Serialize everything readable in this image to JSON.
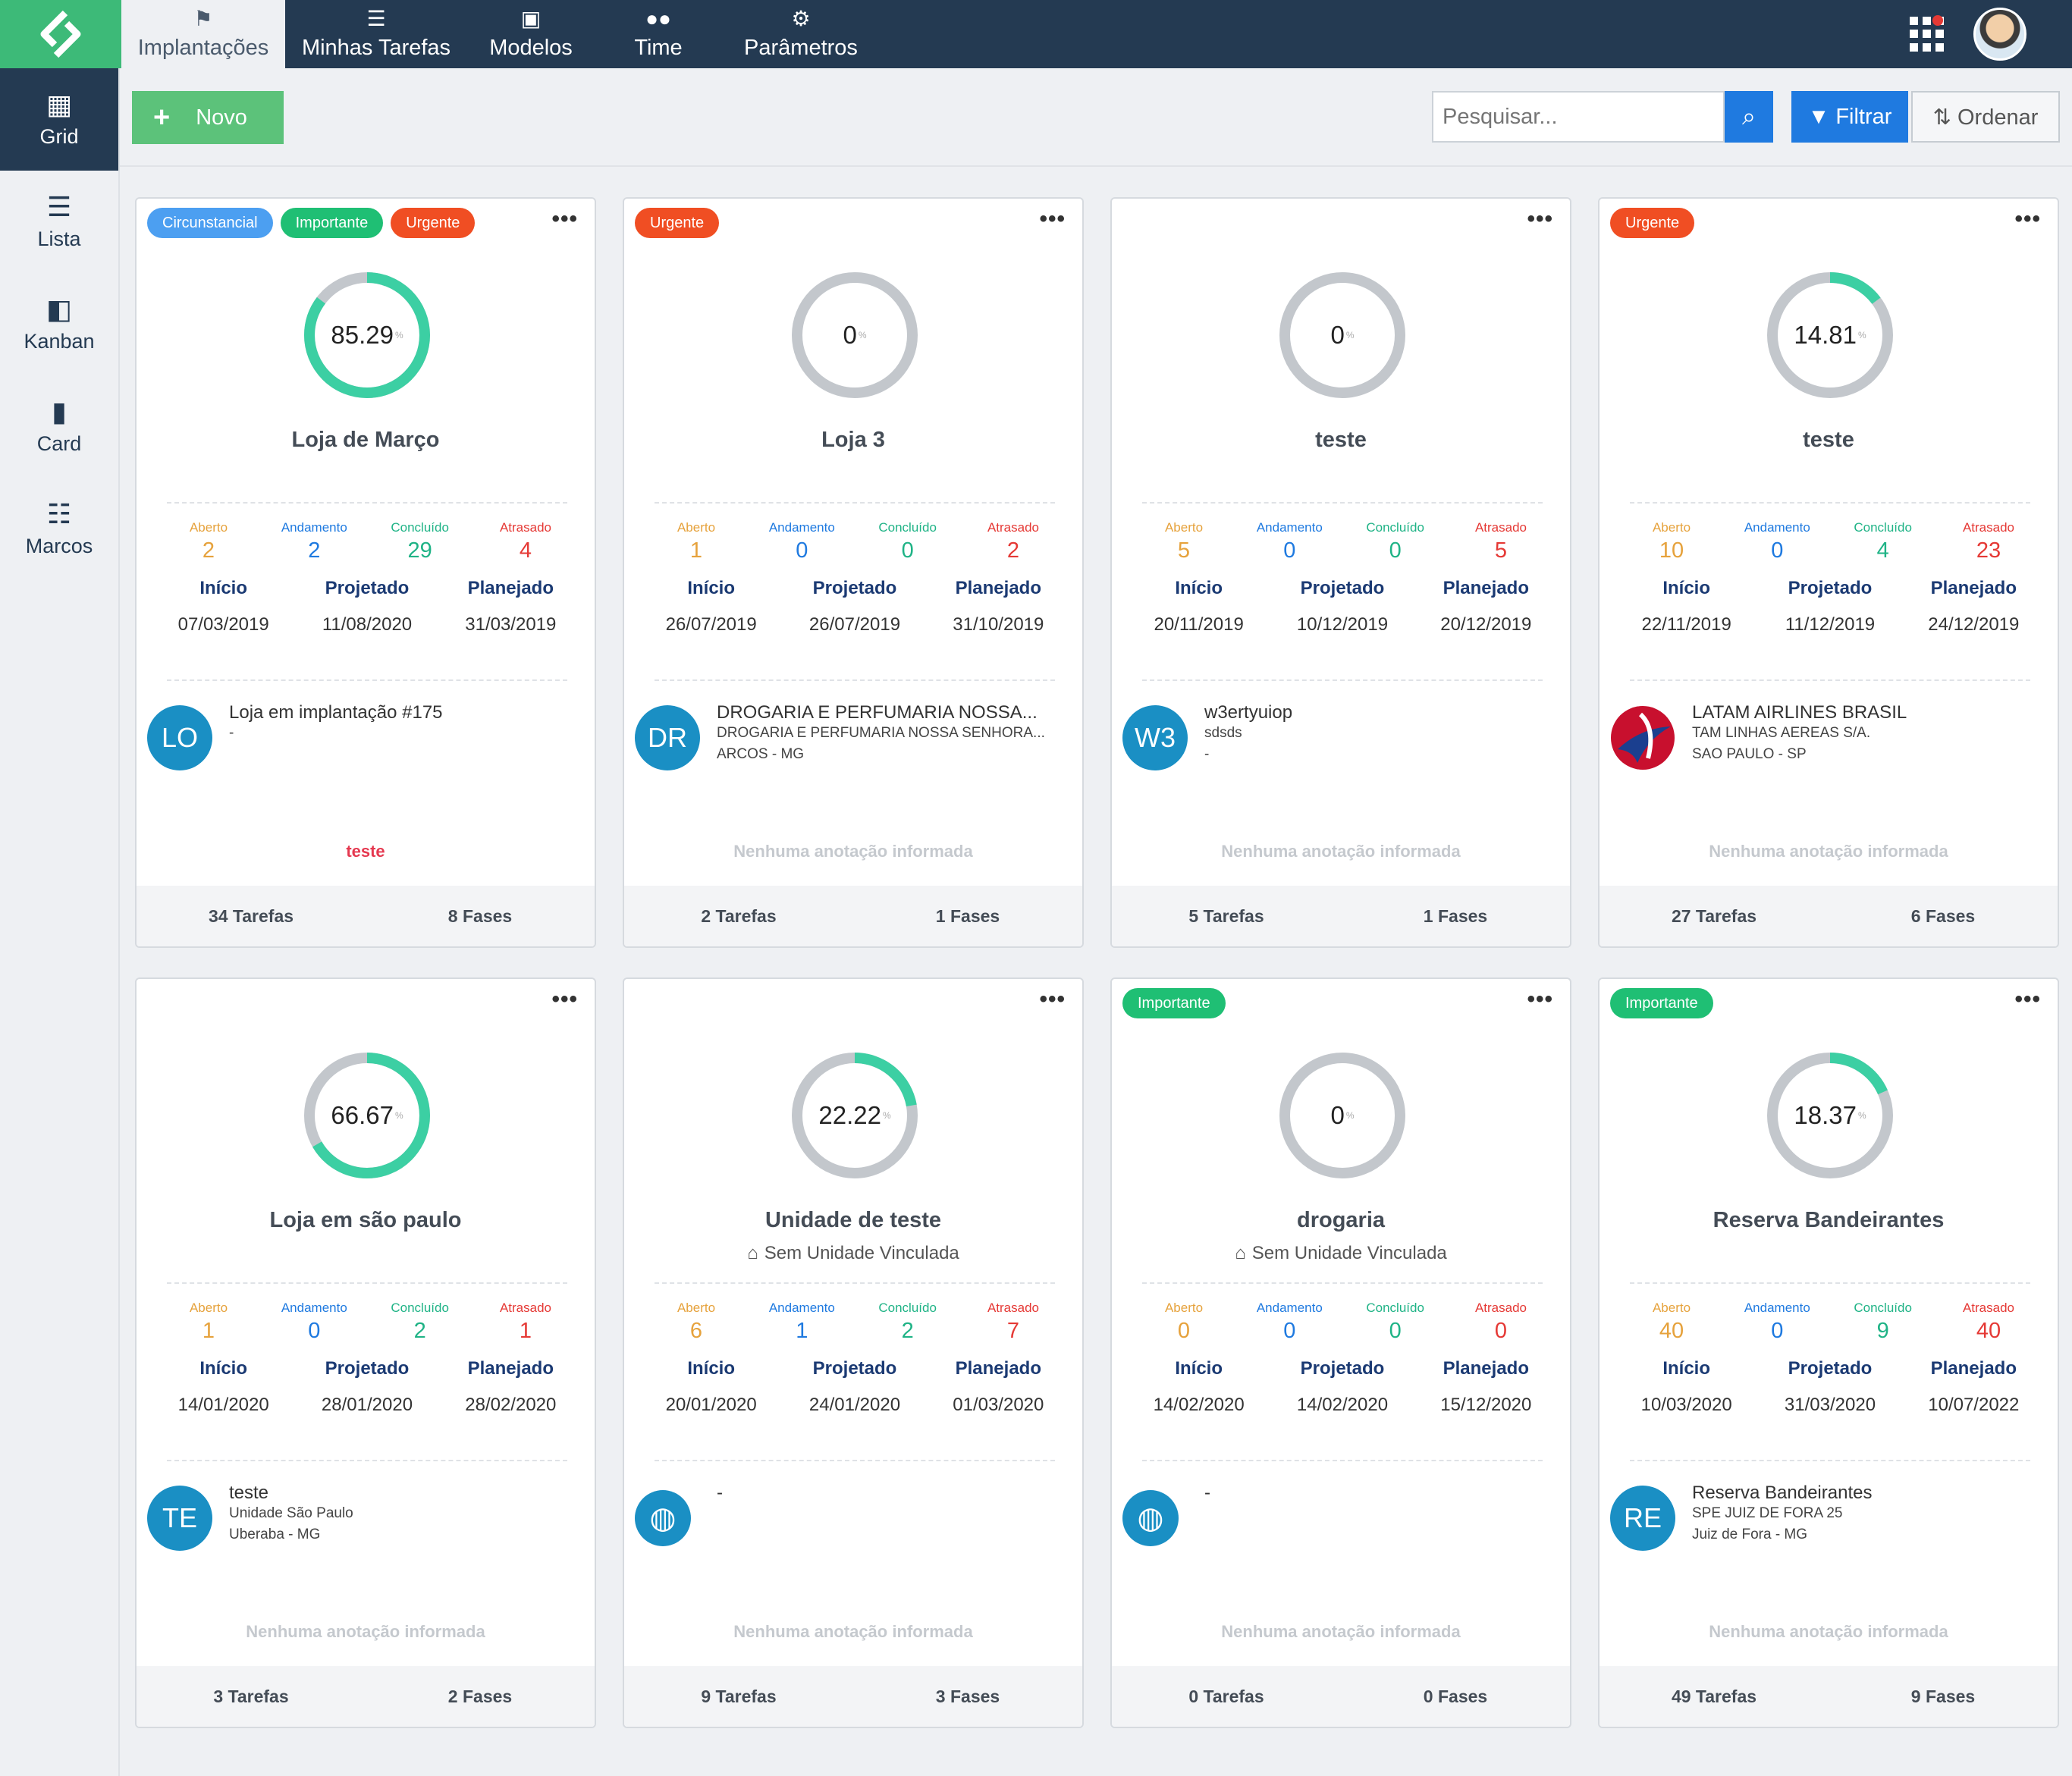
{
  "nav": {
    "items": [
      {
        "label": "Implantações",
        "icon": "flag-icon"
      },
      {
        "label": "Minhas Tarefas",
        "icon": "tasks-icon"
      },
      {
        "label": "Modelos",
        "icon": "template-icon"
      },
      {
        "label": "Time",
        "icon": "users-icon"
      },
      {
        "label": "Parâmetros",
        "icon": "gears-icon"
      }
    ]
  },
  "sidebar": {
    "items": [
      {
        "label": "Grid",
        "icon": "grid-icon"
      },
      {
        "label": "Lista",
        "icon": "list-icon"
      },
      {
        "label": "Kanban",
        "icon": "kanban-icon"
      },
      {
        "label": "Card",
        "icon": "bookmark-icon"
      },
      {
        "label": "Marcos",
        "icon": "list-bullets-icon"
      }
    ]
  },
  "toolbar": {
    "new_label": "Novo",
    "search_placeholder": "Pesquisar...",
    "filter_label": "Filtrar",
    "order_label": "Ordenar"
  },
  "labels": {
    "aberto": "Aberto",
    "andamento": "Andamento",
    "concluido": "Concluído",
    "atrasado": "Atrasado",
    "inicio": "Início",
    "projetado": "Projetado",
    "planejado": "Planejado",
    "percent_sign": "%"
  },
  "colors": {
    "progress": "#3ccfa3",
    "track": "#c3c7cc",
    "brand_green": "#3dba78",
    "nav_dark": "#243a52",
    "primary_blue": "#1f7ae0"
  },
  "cards": [
    {
      "tags": [
        {
          "label": "Circunstancial",
          "type": "circ"
        },
        {
          "label": "Importante",
          "type": "imp"
        },
        {
          "label": "Urgente",
          "type": "urg"
        }
      ],
      "progress": "85.29",
      "title": "Loja de Março",
      "subtitle": "",
      "stats": {
        "aberto": "2",
        "andamento": "2",
        "concluido": "29",
        "atrasado": "4"
      },
      "dates": {
        "inicio": "07/03/2019",
        "projetado": "11/08/2020",
        "planejado": "31/03/2019"
      },
      "client": {
        "avatar": "LO",
        "avatar_type": "initials",
        "name": "Loja em implantação #175",
        "lines": [
          "-"
        ]
      },
      "note": "teste",
      "note_red": true,
      "tarefas": "34 Tarefas",
      "fases": "8 Fases"
    },
    {
      "tags": [
        {
          "label": "Urgente",
          "type": "urg"
        }
      ],
      "progress": "0",
      "title": "Loja 3",
      "subtitle": "",
      "stats": {
        "aberto": "1",
        "andamento": "0",
        "concluido": "0",
        "atrasado": "2"
      },
      "dates": {
        "inicio": "26/07/2019",
        "projetado": "26/07/2019",
        "planejado": "31/10/2019"
      },
      "client": {
        "avatar": "DR",
        "avatar_type": "initials",
        "name": "DROGARIA E PERFUMARIA NOSSA...",
        "lines": [
          "DROGARIA E PERFUMARIA NOSSA SENHORA...",
          "ARCOS - MG"
        ]
      },
      "note": "Nenhuma anotação informada",
      "note_red": false,
      "tarefas": "2 Tarefas",
      "fases": "1 Fases"
    },
    {
      "tags": [],
      "progress": "0",
      "title": "teste",
      "subtitle": "",
      "stats": {
        "aberto": "5",
        "andamento": "0",
        "concluido": "0",
        "atrasado": "5"
      },
      "dates": {
        "inicio": "20/11/2019",
        "projetado": "10/12/2019",
        "planejado": "20/12/2019"
      },
      "client": {
        "avatar": "W3",
        "avatar_type": "initials",
        "name": "w3ertyuiop",
        "lines": [
          "sdsds",
          "-"
        ]
      },
      "note": "Nenhuma anotação informada",
      "note_red": false,
      "tarefas": "5 Tarefas",
      "fases": "1 Fases"
    },
    {
      "tags": [
        {
          "label": "Urgente",
          "type": "urg"
        }
      ],
      "progress": "14.81",
      "title": "teste",
      "subtitle": "",
      "stats": {
        "aberto": "10",
        "andamento": "0",
        "concluido": "4",
        "atrasado": "23"
      },
      "dates": {
        "inicio": "22/11/2019",
        "projetado": "11/12/2019",
        "planejado": "24/12/2019"
      },
      "client": {
        "avatar": "",
        "avatar_type": "logo",
        "name": "LATAM AIRLINES BRASIL",
        "lines": [
          "TAM LINHAS AEREAS S/A.",
          "SAO PAULO - SP"
        ]
      },
      "note": "Nenhuma anotação informada",
      "note_red": false,
      "tarefas": "27 Tarefas",
      "fases": "6 Fases"
    },
    {
      "tags": [],
      "progress": "66.67",
      "title": "Loja em são paulo",
      "subtitle": "",
      "stats": {
        "aberto": "1",
        "andamento": "0",
        "concluido": "2",
        "atrasado": "1"
      },
      "dates": {
        "inicio": "14/01/2020",
        "projetado": "28/01/2020",
        "planejado": "28/02/2020"
      },
      "client": {
        "avatar": "TE",
        "avatar_type": "initials",
        "name": "teste",
        "lines": [
          "Unidade São Paulo",
          "Uberaba - MG"
        ]
      },
      "note": "Nenhuma anotação informada",
      "note_red": false,
      "tarefas": "3 Tarefas",
      "fases": "2 Fases"
    },
    {
      "tags": [],
      "progress": "22.22",
      "title": "Unidade de teste",
      "subtitle": "Sem Unidade Vinculada",
      "stats": {
        "aberto": "6",
        "andamento": "1",
        "concluido": "2",
        "atrasado": "7"
      },
      "dates": {
        "inicio": "20/01/2020",
        "projetado": "24/01/2020",
        "planejado": "01/03/2020"
      },
      "client": {
        "avatar": "",
        "avatar_type": "globe",
        "name": "-",
        "lines": []
      },
      "note": "Nenhuma anotação informada",
      "note_red": false,
      "tarefas": "9 Tarefas",
      "fases": "3 Fases"
    },
    {
      "tags": [
        {
          "label": "Importante",
          "type": "imp"
        }
      ],
      "progress": "0",
      "title": "drogaria",
      "subtitle": "Sem Unidade Vinculada",
      "stats": {
        "aberto": "0",
        "andamento": "0",
        "concluido": "0",
        "atrasado": "0"
      },
      "dates": {
        "inicio": "14/02/2020",
        "projetado": "14/02/2020",
        "planejado": "15/12/2020"
      },
      "client": {
        "avatar": "",
        "avatar_type": "globe",
        "name": "-",
        "lines": []
      },
      "note": "Nenhuma anotação informada",
      "note_red": false,
      "tarefas": "0 Tarefas",
      "fases": "0 Fases"
    },
    {
      "tags": [
        {
          "label": "Importante",
          "type": "imp"
        }
      ],
      "progress": "18.37",
      "title": "Reserva Bandeirantes",
      "subtitle": "",
      "stats": {
        "aberto": "40",
        "andamento": "0",
        "concluido": "9",
        "atrasado": "40"
      },
      "dates": {
        "inicio": "10/03/2020",
        "projetado": "31/03/2020",
        "planejado": "10/07/2022"
      },
      "client": {
        "avatar": "RE",
        "avatar_type": "initials",
        "name": "Reserva Bandeirantes",
        "lines": [
          "SPE JUIZ DE FORA 25",
          "Juiz de Fora - MG"
        ]
      },
      "note": "Nenhuma anotação informada",
      "note_red": false,
      "tarefas": "49 Tarefas",
      "fases": "9 Fases"
    }
  ]
}
